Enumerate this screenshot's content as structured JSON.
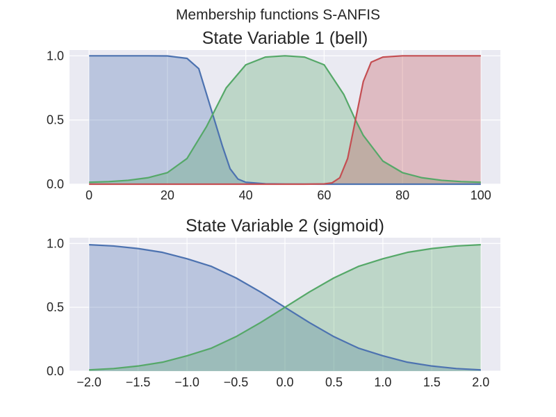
{
  "suptitle": "Membership functions S-ANFIS",
  "chart_data": [
    {
      "type": "line",
      "title": "State Variable 1 (bell)",
      "xlim": [
        0,
        100
      ],
      "ylim": [
        0,
        1
      ],
      "xticks": [
        0,
        20,
        40,
        60,
        80,
        100
      ],
      "xtick_labels": [
        "0",
        "20",
        "40",
        "60",
        "80",
        "100"
      ],
      "yticks": [
        0,
        0.5,
        1
      ],
      "ytick_labels": [
        "0.0",
        "0.5",
        "1.0"
      ],
      "grid": true,
      "fill_under": true,
      "series": [
        {
          "color": "#4c72b0",
          "x": [
            0,
            5,
            10,
            15,
            20,
            25,
            28,
            30,
            32,
            34,
            36,
            38,
            40,
            45,
            50,
            60,
            70,
            80,
            90,
            100
          ],
          "y": [
            1.0,
            1.0,
            1.0,
            1.0,
            0.999,
            0.98,
            0.9,
            0.7,
            0.5,
            0.3,
            0.12,
            0.04,
            0.015,
            0.003,
            0.001,
            0,
            0,
            0,
            0,
            0
          ]
        },
        {
          "color": "#55a868",
          "x": [
            0,
            5,
            10,
            15,
            20,
            25,
            30,
            35,
            40,
            45,
            50,
            55,
            60,
            65,
            68,
            70,
            75,
            80,
            85,
            90,
            95,
            100
          ],
          "y": [
            0.015,
            0.02,
            0.03,
            0.05,
            0.09,
            0.2,
            0.45,
            0.75,
            0.93,
            0.99,
            1.0,
            0.99,
            0.93,
            0.7,
            0.5,
            0.38,
            0.18,
            0.09,
            0.05,
            0.03,
            0.02,
            0.015
          ]
        },
        {
          "color": "#c44e52",
          "x": [
            0,
            20,
            40,
            55,
            60,
            62,
            64,
            66,
            68,
            70,
            72,
            75,
            80,
            90,
            100
          ],
          "y": [
            0,
            0,
            0,
            0,
            0.002,
            0.01,
            0.05,
            0.2,
            0.5,
            0.8,
            0.95,
            0.99,
            1.0,
            1.0,
            1.0
          ]
        }
      ]
    },
    {
      "type": "line",
      "title": "State Variable 2 (sigmoid)",
      "xlim": [
        -2,
        2
      ],
      "ylim": [
        0,
        1
      ],
      "xticks": [
        -2,
        -1.5,
        -1,
        -0.5,
        0,
        0.5,
        1,
        1.5,
        2
      ],
      "xtick_labels": [
        "−2.0",
        "−1.5",
        "−1.0",
        "−0.5",
        "0.0",
        "0.5",
        "1.0",
        "1.5",
        "2.0"
      ],
      "yticks": [
        0,
        0.5,
        1
      ],
      "ytick_labels": [
        "0.0",
        "0.5",
        "1.0"
      ],
      "grid": true,
      "fill_under": true,
      "series": [
        {
          "color": "#4c72b0",
          "x": [
            -2,
            -1.75,
            -1.5,
            -1.25,
            -1,
            -0.75,
            -0.5,
            -0.25,
            0,
            0.25,
            0.5,
            0.75,
            1,
            1.25,
            1.5,
            1.75,
            2
          ],
          "y": [
            0.99,
            0.98,
            0.96,
            0.93,
            0.88,
            0.82,
            0.73,
            0.62,
            0.5,
            0.38,
            0.27,
            0.18,
            0.12,
            0.07,
            0.04,
            0.02,
            0.01
          ]
        },
        {
          "color": "#55a868",
          "x": [
            -2,
            -1.75,
            -1.5,
            -1.25,
            -1,
            -0.75,
            -0.5,
            -0.25,
            0,
            0.25,
            0.5,
            0.75,
            1,
            1.25,
            1.5,
            1.75,
            2
          ],
          "y": [
            0.01,
            0.02,
            0.04,
            0.07,
            0.12,
            0.18,
            0.27,
            0.38,
            0.5,
            0.62,
            0.73,
            0.82,
            0.88,
            0.93,
            0.96,
            0.98,
            0.99
          ]
        }
      ]
    }
  ]
}
